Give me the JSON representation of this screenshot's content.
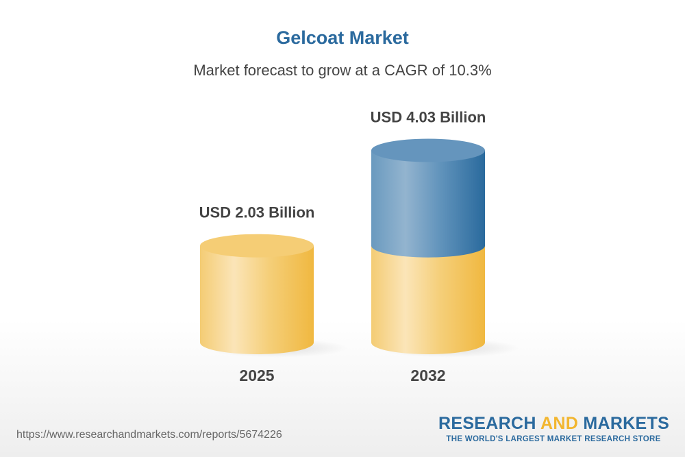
{
  "chart_data": {
    "type": "bar",
    "style": "3d-cylinder",
    "title": "Gelcoat Market",
    "subtitle": "Market forecast to grow at a CAGR of 10.3%",
    "categories": [
      "2025",
      "2032"
    ],
    "values": [
      2.03,
      4.03
    ],
    "data_labels": [
      "USD 2.03 Billion",
      "USD 4.03 Billion"
    ],
    "unit": "USD Billion",
    "colors": {
      "base": "#f2b630",
      "growth": "#2b6a9e"
    },
    "grid": false,
    "legend": "none"
  },
  "footer": {
    "url": "https://www.researchandmarkets.com/reports/5674226",
    "logo_part1": "RESEARCH ",
    "logo_part2": "AND",
    "logo_part3": " MARKETS",
    "logo_tagline": "THE WORLD'S LARGEST MARKET RESEARCH STORE"
  }
}
